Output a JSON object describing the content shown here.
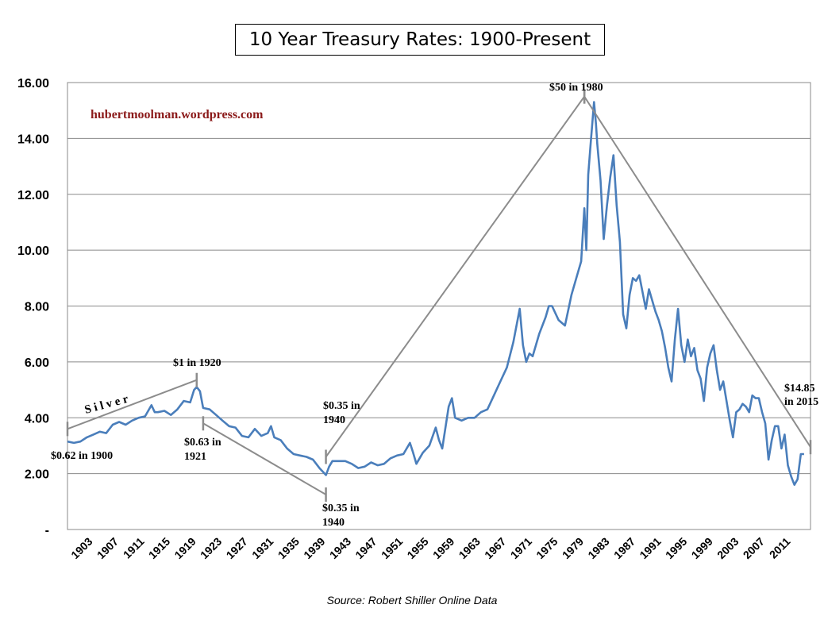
{
  "chart_data": {
    "type": "line",
    "title": "10 Year Treasury Rates: 1900-Present",
    "source": "Source: Robert Shiller Online Data",
    "watermark": "hubertmoolman.wordpress.com",
    "watermark_color": "#8b1a1a",
    "line_color": "#4a7ebb",
    "overlay_color": "#8c8c8c",
    "grid": true,
    "ylim": [
      0,
      16
    ],
    "xlim": [
      1900,
      2015
    ],
    "y_ticks": [
      {
        "value": 0,
        "label": "-"
      },
      {
        "value": 2,
        "label": "2.00"
      },
      {
        "value": 4,
        "label": "4.00"
      },
      {
        "value": 6,
        "label": "6.00"
      },
      {
        "value": 8,
        "label": "8.00"
      },
      {
        "value": 10,
        "label": "10.00"
      },
      {
        "value": 12,
        "label": "12.00"
      },
      {
        "value": 14,
        "label": "14.00"
      },
      {
        "value": 16,
        "label": "16.00"
      }
    ],
    "x_ticks": [
      {
        "value": 1903,
        "label": "1903"
      },
      {
        "value": 1907,
        "label": "1907"
      },
      {
        "value": 1911,
        "label": "1911"
      },
      {
        "value": 1915,
        "label": "1915"
      },
      {
        "value": 1919,
        "label": "1919"
      },
      {
        "value": 1923,
        "label": "1923"
      },
      {
        "value": 1927,
        "label": "1927"
      },
      {
        "value": 1931,
        "label": "1931"
      },
      {
        "value": 1935,
        "label": "1935"
      },
      {
        "value": 1939,
        "label": "1939"
      },
      {
        "value": 1943,
        "label": "1943"
      },
      {
        "value": 1947,
        "label": "1947"
      },
      {
        "value": 1951,
        "label": "1951"
      },
      {
        "value": 1955,
        "label": "1955"
      },
      {
        "value": 1959,
        "label": "1959"
      },
      {
        "value": 1963,
        "label": "1963"
      },
      {
        "value": 1967,
        "label": "1967"
      },
      {
        "value": 1971,
        "label": "1971"
      },
      {
        "value": 1975,
        "label": "1975"
      },
      {
        "value": 1979,
        "label": "1979"
      },
      {
        "value": 1983,
        "label": "1983"
      },
      {
        "value": 1987,
        "label": "1987"
      },
      {
        "value": 1991,
        "label": "1991"
      },
      {
        "value": 1995,
        "label": "1995"
      },
      {
        "value": 1999,
        "label": "1999"
      },
      {
        "value": 2003,
        "label": "2003"
      },
      {
        "value": 2007,
        "label": "2007"
      },
      {
        "value": 2011,
        "label": "2011"
      }
    ],
    "series": [
      {
        "x": [
          1900,
          1901,
          1902,
          1903,
          1904,
          1905,
          1906,
          1907,
          1908,
          1909,
          1910,
          1911,
          1912,
          1913,
          1913.5,
          1914,
          1915,
          1916,
          1917,
          1918,
          1919,
          1919.6,
          1920,
          1920.5,
          1921,
          1922,
          1923,
          1924,
          1925,
          1926,
          1927,
          1928,
          1929,
          1930,
          1931,
          1931.5,
          1932,
          1933,
          1934,
          1935,
          1936,
          1937,
          1938,
          1939,
          1940,
          1940.5,
          1941,
          1942,
          1943,
          1944,
          1945,
          1946,
          1947,
          1948,
          1949,
          1950,
          1951,
          1952,
          1953,
          1953.5,
          1954,
          1955,
          1956,
          1957,
          1957.5,
          1958,
          1959,
          1959.5,
          1960,
          1961,
          1962,
          1963,
          1964,
          1965,
          1966,
          1967,
          1968,
          1969,
          1970,
          1970.5,
          1971,
          1971.5,
          1972,
          1973,
          1974,
          1974.5,
          1975,
          1976,
          1977,
          1978,
          1979,
          1979.5,
          1980,
          1980.3,
          1980.6,
          1981,
          1981.5,
          1981.8,
          1982,
          1982.5,
          1983,
          1983.5,
          1984,
          1984.5,
          1985,
          1985.5,
          1986,
          1986.5,
          1987,
          1987.5,
          1988,
          1988.5,
          1989,
          1989.5,
          1990,
          1990.5,
          1991,
          1991.5,
          1992,
          1992.5,
          1993,
          1993.5,
          1994,
          1994.5,
          1995,
          1995.5,
          1996,
          1996.5,
          1997,
          1997.5,
          1998,
          1998.5,
          1999,
          1999.5,
          2000,
          2000.5,
          2001,
          2001.5,
          2002,
          2002.5,
          2003,
          2003.5,
          2004,
          2004.5,
          2005,
          2005.5,
          2006,
          2006.5,
          2007,
          2007.5,
          2008,
          2008.5,
          2009,
          2009.5,
          2010,
          2010.5,
          2011,
          2011.5,
          2012,
          2012.5,
          2013,
          2013.5,
          2014
        ],
        "values": [
          3.15,
          3.1,
          3.15,
          3.3,
          3.4,
          3.5,
          3.45,
          3.75,
          3.85,
          3.75,
          3.9,
          4.0,
          4.05,
          4.45,
          4.2,
          4.2,
          4.25,
          4.1,
          4.3,
          4.6,
          4.55,
          5.0,
          5.1,
          4.95,
          4.35,
          4.3,
          4.1,
          3.9,
          3.7,
          3.65,
          3.35,
          3.3,
          3.6,
          3.35,
          3.45,
          3.7,
          3.3,
          3.2,
          2.9,
          2.7,
          2.65,
          2.6,
          2.5,
          2.2,
          1.95,
          2.25,
          2.45,
          2.45,
          2.45,
          2.35,
          2.2,
          2.25,
          2.4,
          2.3,
          2.35,
          2.55,
          2.65,
          2.7,
          3.1,
          2.75,
          2.35,
          2.75,
          3.0,
          3.65,
          3.2,
          2.9,
          4.4,
          4.7,
          4.0,
          3.9,
          4.0,
          4.0,
          4.2,
          4.3,
          4.8,
          5.3,
          5.8,
          6.7,
          7.9,
          6.6,
          6.0,
          6.3,
          6.2,
          7.0,
          7.6,
          8.0,
          8.0,
          7.5,
          7.3,
          8.4,
          9.2,
          9.6,
          11.5,
          10.0,
          12.7,
          13.9,
          15.3,
          14.5,
          13.8,
          12.5,
          10.4,
          11.6,
          12.6,
          13.4,
          11.6,
          10.3,
          7.7,
          7.2,
          8.4,
          9.0,
          8.9,
          9.1,
          8.5,
          7.9,
          8.6,
          8.2,
          7.8,
          7.5,
          7.1,
          6.5,
          5.8,
          5.3,
          6.8,
          7.9,
          6.6,
          6.0,
          6.8,
          6.2,
          6.5,
          5.7,
          5.4,
          4.6,
          5.8,
          6.3,
          6.6,
          5.7,
          5.0,
          5.3,
          4.6,
          3.9,
          3.3,
          4.2,
          4.3,
          4.5,
          4.4,
          4.2,
          4.8,
          4.7,
          4.7,
          4.2,
          3.8,
          2.5,
          3.2,
          3.7,
          3.7,
          2.9,
          3.4,
          2.3,
          1.9,
          1.6,
          1.8,
          2.7,
          2.7
        ]
      }
    ],
    "overlay_lines": [
      {
        "name": "silver",
        "points": [
          [
            1900,
            3.6
          ],
          [
            1920,
            5.35
          ]
        ]
      },
      {
        "name": "silver",
        "points": [
          [
            1921,
            3.8
          ],
          [
            1940,
            1.25
          ]
        ]
      },
      {
        "name": "silver",
        "points": [
          [
            1940,
            2.6
          ],
          [
            1980,
            15.5
          ]
        ]
      },
      {
        "name": "silver",
        "points": [
          [
            1980,
            15.5
          ],
          [
            2015,
            2.95
          ]
        ]
      }
    ],
    "annotations": [
      {
        "text": "$0.62 in 1900"
      },
      {
        "text": "$1 in 1920"
      },
      {
        "text": "$0.63 in"
      },
      {
        "text": "1921"
      },
      {
        "text": "$0.35 in"
      },
      {
        "text": "1940"
      },
      {
        "text": "$0.35 in"
      },
      {
        "text": "1940"
      },
      {
        "text": "$50 in 1980"
      },
      {
        "text": "$14.85"
      },
      {
        "text": "in 2015"
      },
      {
        "text": "S i l v e r"
      }
    ]
  }
}
